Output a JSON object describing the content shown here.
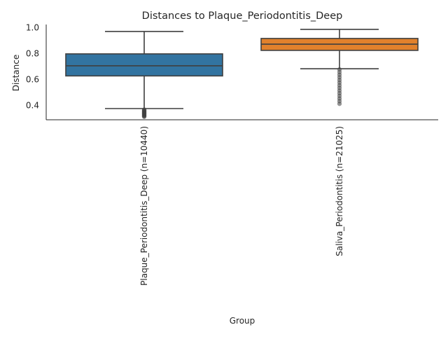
{
  "chart_data": {
    "type": "box",
    "title": "Distances to Plaque_Periodontitis_Deep",
    "xlabel": "Group",
    "ylabel": "Distance",
    "ylim": [
      0.29,
      1.02
    ],
    "yticks": [
      0.4,
      0.6,
      0.8,
      1.0
    ],
    "ytick_labels": [
      "0.4",
      "0.6",
      "0.8",
      "1.0"
    ],
    "grid": false,
    "categories": [
      "Plaque_Periodontitis_Deep (n=10440)",
      "Saliva_Periodontitis (n=21025)"
    ],
    "boxes": [
      {
        "name": "Plaque_Periodontitis_Deep (n=10440)",
        "color": "#3274a1",
        "whisker_low": 0.373,
        "q1": 0.625,
        "median": 0.703,
        "q3": 0.795,
        "whisker_high": 0.968,
        "outlier_range": [
          0.31,
          0.365
        ]
      },
      {
        "name": "Saliva_Periodontitis (n=21025)",
        "color": "#e1812c",
        "whisker_low": 0.68,
        "q1": 0.822,
        "median": 0.87,
        "q3": 0.914,
        "whisker_high": 0.984,
        "outlier_range": [
          0.41,
          0.675
        ]
      }
    ]
  }
}
